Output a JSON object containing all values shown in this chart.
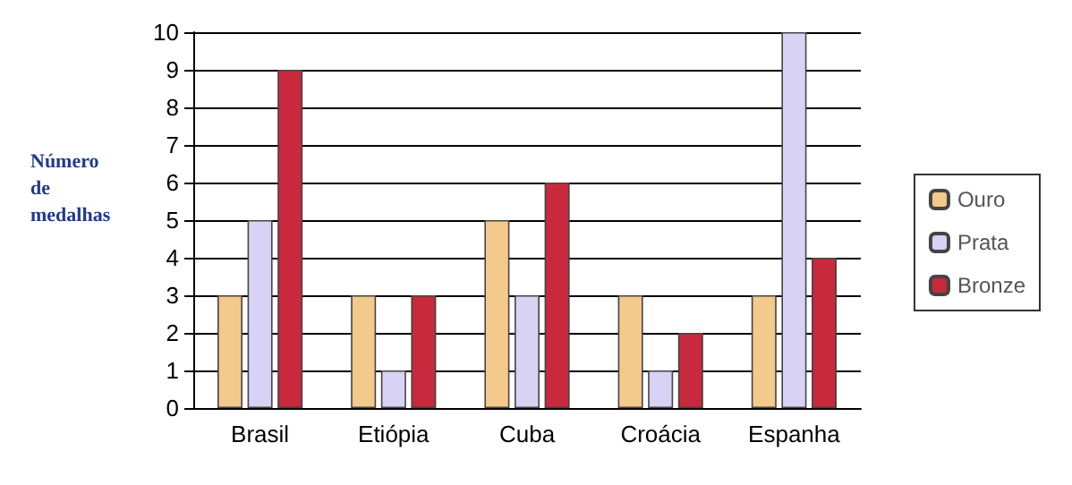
{
  "chart_data": {
    "type": "bar",
    "ylabel": "Número de medalhas",
    "categories": [
      "Brasil",
      "Etiópia",
      "Cuba",
      "Croácia",
      "Espanha"
    ],
    "series": [
      {
        "name": "Ouro",
        "color": "#f3c98c",
        "values": [
          3,
          3,
          5,
          3,
          3
        ]
      },
      {
        "name": "Prata",
        "color": "#d8d2f4",
        "values": [
          5,
          1,
          3,
          1,
          10
        ]
      },
      {
        "name": "Bronze",
        "color": "#c9293c",
        "values": [
          9,
          3,
          6,
          2,
          4
        ]
      }
    ],
    "ylim": [
      0,
      10
    ],
    "yticks": [
      0,
      1,
      2,
      3,
      4,
      5,
      6,
      7,
      8,
      9,
      10
    ],
    "grid": "y",
    "legend": "right"
  }
}
